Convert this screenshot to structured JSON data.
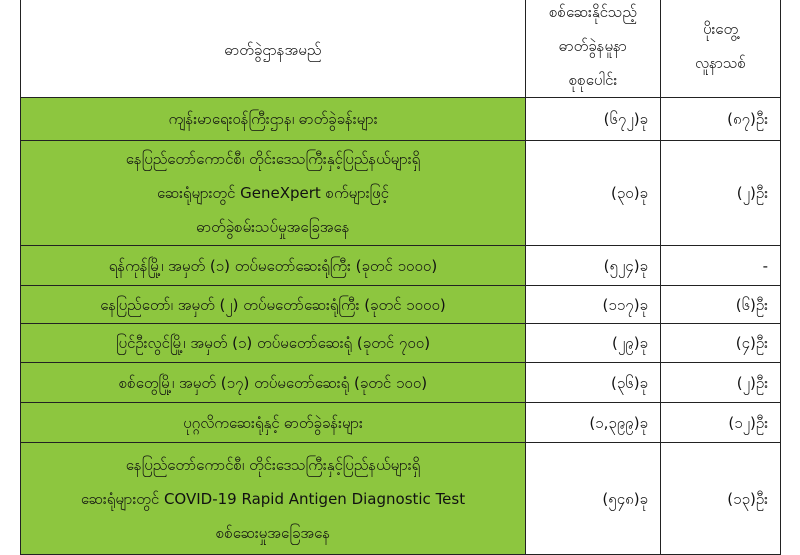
{
  "table": {
    "header": [
      [
        "ဓာတ်ခွဲဌာနအမည်"
      ],
      [
        "စစ်ဆေးနိုင်သည့်",
        "ဓာတ်ခွဲနမူနာ",
        "စုစုပေါင်း"
      ],
      [
        "ပိုးတွေ့",
        "လူနာသစ်"
      ]
    ],
    "rows": [
      [
        [
          "ကျန်းမာရေးဝန်ကြီးဌာန၊ ဓာတ်ခွဲခန်းများ"
        ],
        [
          "(၆၇၂)ခု"
        ],
        [
          "(၈၇)ဦး"
        ]
      ],
      [
        [
          "နေပြည်တော်ကောင်စီ၊ တိုင်းဒေသကြီးနှင့်ပြည်နယ်များရှိ",
          "ဆေးရုံများတွင် GeneXpert စက်များဖြင့်",
          "ဓာတ်ခွဲစမ်းသပ်မှုအခြေအနေ"
        ],
        [
          "(၃၀)ခု"
        ],
        [
          "(၂)ဦး"
        ]
      ],
      [
        [
          "ရန်ကုန်မြို့၊ အမှတ် (၁) တပ်မတော်ဆေးရုံကြီး (ခုတင် ၁၀၀၀)"
        ],
        [
          "(၅၂၄)ခု"
        ],
        [
          "-"
        ]
      ],
      [
        [
          "နေပြည်တော်၊ အမှတ် (၂) တပ်မတော်ဆေးရုံကြီး (ခုတင် ၁၀၀၀)"
        ],
        [
          "(၁၁၇)ခု"
        ],
        [
          "(၆)ဦး"
        ]
      ],
      [
        [
          "ပြင်ဦးလွင်မြို့၊ အမှတ် (၁) တပ်မတော်ဆေးရုံ (ခုတင် ၇၀၀)"
        ],
        [
          "(၂၉)ခု"
        ],
        [
          "(၄)ဦး"
        ]
      ],
      [
        [
          "စစ်တွေမြို့၊ အမှတ် (၁၇) တပ်မတော်ဆေးရုံ (ခုတင် ၁၀၀)"
        ],
        [
          "(၃၆)ခု"
        ],
        [
          "(၂)ဦး"
        ]
      ],
      [
        [
          "ပုဂ္ဂလိကဆေးရုံနှင့် ဓာတ်ခွဲခန်းများ"
        ],
        [
          "(၁,၃၉၉)ခု"
        ],
        [
          "(၁၂)ဦး"
        ]
      ],
      [
        [
          "နေပြည်တော်ကောင်စီ၊ တိုင်းဒေသကြီးနှင့်ပြည်နယ်များရှိ",
          "ဆေးရုံများတွင် COVID-19 Rapid Antigen Diagnostic Test",
          "စစ်ဆေးမှုအခြေအနေ"
        ],
        [
          "(၅၄၈)ခု"
        ],
        [
          "(၁၃)ဦး"
        ]
      ]
    ]
  }
}
